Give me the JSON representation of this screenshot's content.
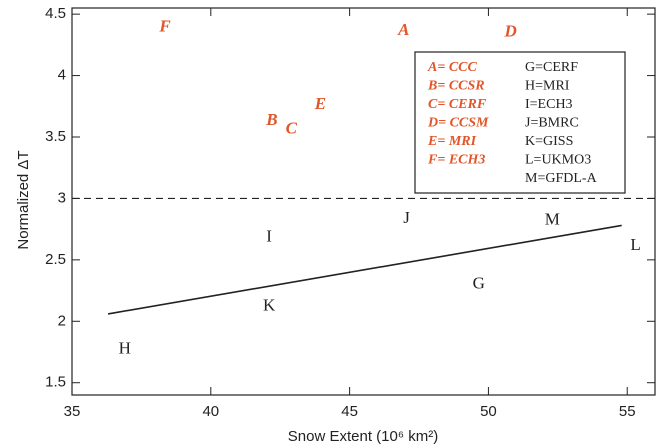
{
  "chart_data": {
    "type": "scatter",
    "xlabel": "Snow Extent (10⁶ km²)",
    "ylabel": "Normalized ΔT",
    "xlim": [
      35,
      56
    ],
    "ylim": [
      1.4,
      4.55
    ],
    "xticks": [
      35,
      40,
      45,
      50,
      55
    ],
    "yticks": [
      1.5,
      2.0,
      2.5,
      3.0,
      3.5,
      4.0,
      4.5
    ],
    "series": [
      {
        "color": "#e0562a",
        "markers": [
          "F",
          "A",
          "D",
          "E",
          "B",
          "C"
        ],
        "x": [
          38.35,
          46.95,
          50.8,
          43.95,
          42.2,
          42.9
        ],
        "values": [
          4.39,
          4.36,
          4.35,
          3.76,
          3.63,
          3.56
        ]
      },
      {
        "color": "#222222",
        "markers": [
          "I",
          "J",
          "M",
          "L",
          "G",
          "K",
          "H"
        ],
        "x": [
          42.1,
          47.05,
          52.3,
          55.3,
          49.65,
          42.1,
          36.9
        ],
        "values": [
          2.68,
          2.83,
          2.82,
          2.61,
          2.3,
          2.12,
          1.77
        ]
      }
    ],
    "fit": {
      "x": [
        36.3,
        54.8
      ],
      "values": [
        2.06,
        2.78
      ]
    },
    "reference_line": 3.0,
    "legend": {
      "left": [
        "A= CCC",
        "B= CCSR",
        "C= CERF",
        "D= CCSM",
        "E= MRI",
        "F= ECH3"
      ],
      "right": [
        "G=CERF",
        "H=MRI",
        "I=ECH3",
        "J=BMRC",
        "K=GISS",
        "L=UKMO3",
        "M=GFDL-A"
      ]
    }
  }
}
